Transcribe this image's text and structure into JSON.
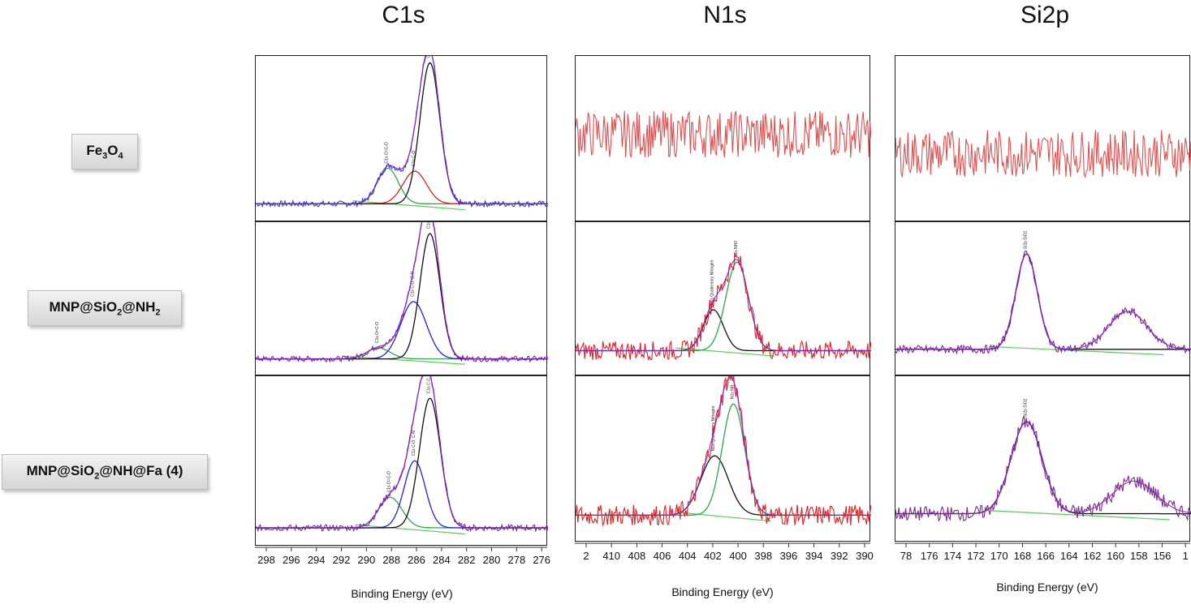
{
  "columns": [
    "C1s",
    "N1s",
    "Si2p"
  ],
  "rows": [
    {
      "label_base": "Fe",
      "label_sub1": "3",
      "label_mid": "O",
      "label_sub2": "4",
      "label_tail": ""
    },
    {
      "label_base": "MNP@SiO",
      "label_sub1": "2",
      "label_mid": "@NH",
      "label_sub2": "2",
      "label_tail": ""
    },
    {
      "label_base": "MNP@SiO",
      "label_sub1": "2",
      "label_mid": "@NH@Fa (4)",
      "label_sub2": "",
      "label_tail": ""
    }
  ],
  "chart_data": [
    {
      "type": "line",
      "title": "C1s",
      "xlabel": "Binding Energy (eV)",
      "x_ticks": [
        "298",
        "296",
        "294",
        "292",
        "290",
        "288",
        "286",
        "284",
        "282",
        "280",
        "278",
        "276"
      ],
      "xlim": [
        299.5,
        274.5
      ],
      "panels": [
        {
          "sample": "Fe3O4",
          "peaks": [
            {
              "label": "C1s O=C-O",
              "center": 288.2,
              "height": 0.24,
              "width": 0.9,
              "color": "#2aa84a"
            },
            {
              "label": "C1s C-O",
              "center": 285.9,
              "height": 0.22,
              "width": 1.0,
              "color": "#e02020"
            },
            {
              "label": "C1s C-C, C-H",
              "center": 284.6,
              "height": 0.95,
              "width": 0.85,
              "color": "#111111"
            }
          ],
          "baseline": 0.08,
          "noise": 0.02,
          "envelope_color": "#8a1ad0",
          "raw_color": "#3a3ad0"
        },
        {
          "sample": "MNP@SiO2@NH2",
          "peaks": [
            {
              "label": "C1s O=C-O",
              "center": 289.0,
              "height": 0.08,
              "width": 1.0,
              "color": "#2aa84a"
            },
            {
              "label": "C1s C-O, C-N",
              "center": 286.0,
              "height": 0.42,
              "width": 1.1,
              "color": "#2222dd"
            },
            {
              "label": "C1s C-C, C-H",
              "center": 284.6,
              "height": 0.92,
              "width": 0.85,
              "color": "#111111"
            }
          ],
          "baseline": 0.08,
          "noise": 0.02,
          "envelope_color": "#8a1ad0",
          "raw_color": "#7a2a8a"
        },
        {
          "sample": "MNP@SiO2@NH@Fa (4)",
          "peaks": [
            {
              "label": "C1s O=C-O",
              "center": 288.0,
              "height": 0.2,
              "width": 1.0,
              "color": "#2aa84a"
            },
            {
              "label": "C1s C-O, C-N",
              "center": 285.9,
              "height": 0.44,
              "width": 0.9,
              "color": "#2222dd"
            },
            {
              "label": "C1s C-C, C-H",
              "center": 284.6,
              "height": 0.85,
              "width": 0.9,
              "color": "#111111"
            }
          ],
          "baseline": 0.08,
          "noise": 0.02,
          "envelope_color": "#8a1ad0",
          "raw_color": "#7a2a8a"
        }
      ]
    },
    {
      "type": "line",
      "title": "N1s",
      "xlabel": "Binding Energy (eV)",
      "x_ticks": [
        "2",
        "410",
        "408",
        "406",
        "404",
        "402",
        "400",
        "398",
        "396",
        "394",
        "392",
        "390"
      ],
      "xlim": [
        412.2,
        388.6
      ],
      "panels": [
        {
          "sample": "Fe3O4",
          "peaks": [],
          "baseline": 0.55,
          "noise": 0.1,
          "envelope_color": "#e02020",
          "raw_color": "#e05050"
        },
        {
          "sample": "MNP@SiO2@NH2",
          "peaks": [
            {
              "label": "N1s Quaternary Nitrogen",
              "center": 401.2,
              "height": 0.3,
              "width": 0.8,
              "color": "#111111"
            },
            {
              "label": "N1s NH2",
              "center": 399.3,
              "height": 0.65,
              "width": 0.9,
              "color": "#2aa84a"
            }
          ],
          "baseline": 0.14,
          "noise": 0.07,
          "envelope_color": "#8a1ad0",
          "raw_color": "#e02020"
        },
        {
          "sample": "MNP@SiO2@NH@Fa (4)",
          "peaks": [
            {
              "label": "N1s Quaternary Nitrogen",
              "center": 401.1,
              "height": 0.4,
              "width": 1.1,
              "color": "#111111"
            },
            {
              "label": "N1s NH",
              "center": 399.6,
              "height": 0.75,
              "width": 0.9,
              "color": "#2aa84a"
            }
          ],
          "baseline": 0.14,
          "noise": 0.07,
          "envelope_color": "#8a1ad0",
          "raw_color": "#e02020"
        }
      ]
    },
    {
      "type": "line",
      "title": "Si2p",
      "xlabel": "Binding Energy (eV)",
      "x_ticks": [
        "78",
        "176",
        "174",
        "172",
        "170",
        "168",
        "166",
        "164",
        "162",
        "160",
        "158",
        "156",
        "1"
      ],
      "xlim": [
        178.5,
        153.7
      ],
      "panels": [
        {
          "sample": "Fe3O4",
          "peaks": [],
          "baseline": 0.42,
          "noise": 0.1,
          "envelope_color": "#e02020",
          "raw_color": "#e05050"
        },
        {
          "sample": "MNP@SiO2@NH2",
          "peaks": [
            {
              "label": "Si2p SiO2",
              "center": 167.5,
              "height": 0.7,
              "width": 0.9,
              "color": "#111111"
            },
            {
              "label": "",
              "center": 159.0,
              "height": 0.28,
              "width": 1.6,
              "color": "#7a2a8a"
            }
          ],
          "baseline": 0.15,
          "noise": 0.03,
          "envelope_color": "#8a1ad0",
          "raw_color": "#7a2a8a"
        },
        {
          "sample": "MNP@SiO2@NH@Fa (4)",
          "peaks": [
            {
              "label": "Si2p SiO2",
              "center": 167.5,
              "height": 0.62,
              "width": 1.3,
              "color": "#111111"
            },
            {
              "label": "",
              "center": 158.5,
              "height": 0.22,
              "width": 1.8,
              "color": "#7a2a8a"
            }
          ],
          "baseline": 0.15,
          "noise": 0.05,
          "envelope_color": "#8a1ad0",
          "raw_color": "#7a2a8a"
        }
      ]
    }
  ]
}
